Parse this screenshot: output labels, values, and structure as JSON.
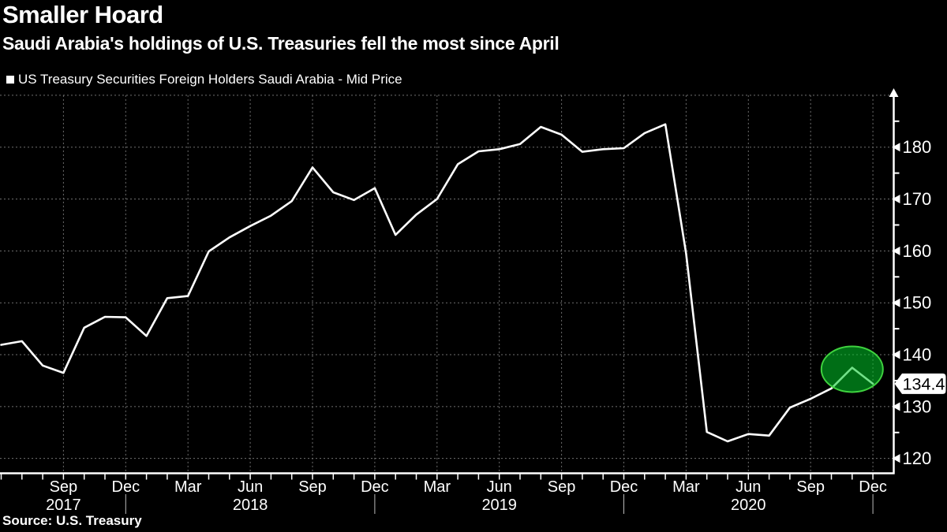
{
  "header": {
    "title": "Smaller Hoard",
    "subtitle": "Saudi Arabia's holdings of U.S. Treasuries fell the most since April"
  },
  "legend": {
    "label": "US Treasury Securities Foreign Holders Saudi Arabia - Mid Price"
  },
  "source": {
    "text": "Source: U.S. Treasury"
  },
  "colors": {
    "background": "#000000",
    "text": "#ffffff",
    "line": "#ffffff",
    "grid": "#707070",
    "axis": "#ffffff",
    "year_separator": "#bbbbbb",
    "highlight_fill": "#00c828",
    "highlight_stroke": "#3fd23f",
    "badge_bg": "#ffffff",
    "badge_text": "#000000"
  },
  "chart_data": {
    "type": "line",
    "title": "Smaller Hoard",
    "subtitle": "Saudi Arabia's holdings of U.S. Treasuries fell the most since April",
    "grid": "dotted",
    "legend_position": "top-left",
    "y_axis": {
      "side": "right",
      "labeled_ticks": [
        120,
        130,
        140,
        150,
        160,
        170,
        180
      ],
      "minor_ticks": [
        125,
        135,
        145,
        155,
        165,
        175,
        185
      ],
      "grid_values": [
        120,
        130,
        140,
        150,
        160,
        170,
        180,
        190
      ],
      "range": [
        116,
        190
      ]
    },
    "x_axis": {
      "tick_interval": "monthly",
      "label_interval": "quarterly",
      "year_labels": [
        {
          "text": "2017",
          "at": "2017-09"
        },
        {
          "text": "2018",
          "at": "2018-06"
        },
        {
          "text": "2019",
          "at": "2019-06"
        },
        {
          "text": "2020",
          "at": "2020-06"
        }
      ],
      "year_separators": [
        "2017-12",
        "2018-12",
        "2019-12",
        "2020-12"
      ]
    },
    "series": [
      {
        "name": "US Treasury Securities Foreign Holders Saudi Arabia - Mid Price",
        "color": "#ffffff",
        "x": [
          "2017-06",
          "2017-07",
          "2017-08",
          "2017-09",
          "2017-10",
          "2017-11",
          "2017-12",
          "2018-01",
          "2018-02",
          "2018-03",
          "2018-04",
          "2018-05",
          "2018-06",
          "2018-07",
          "2018-08",
          "2018-09",
          "2018-10",
          "2018-11",
          "2018-12",
          "2019-01",
          "2019-02",
          "2019-03",
          "2019-04",
          "2019-05",
          "2019-06",
          "2019-07",
          "2019-08",
          "2019-09",
          "2019-10",
          "2019-11",
          "2019-12",
          "2020-01",
          "2020-02",
          "2020-03",
          "2020-04",
          "2020-05",
          "2020-06",
          "2020-07",
          "2020-08",
          "2020-09",
          "2020-10",
          "2020-11",
          "2020-12"
        ],
        "values": [
          141.9,
          142.6,
          137.9,
          136.5,
          145.2,
          147.3,
          147.2,
          143.6,
          150.9,
          151.3,
          159.9,
          162.6,
          164.8,
          166.8,
          169.6,
          176.1,
          171.3,
          169.8,
          172.1,
          163.1,
          167.0,
          170.0,
          176.7,
          179.2,
          179.6,
          180.6,
          183.9,
          182.4,
          179.1,
          179.6,
          179.8,
          182.7,
          184.4,
          159.5,
          125.1,
          123.3,
          124.7,
          124.4,
          129.8,
          131.5,
          133.5,
          137.5,
          134.4
        ]
      }
    ],
    "highlight_ellipse": {
      "center_month": "2020-11",
      "center_value": 137.2,
      "months_spanned": [
        "2020-10",
        "2020-12"
      ],
      "meaning": "highlights the November peak and December drop"
    },
    "annotation_badge": {
      "text": "134.4",
      "value": 134.4,
      "month": "2020-12"
    }
  }
}
